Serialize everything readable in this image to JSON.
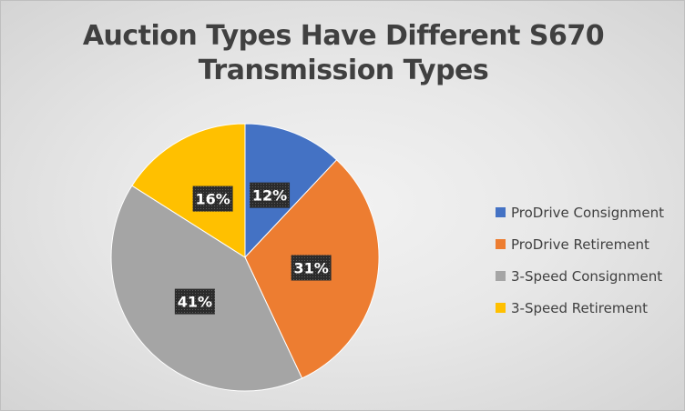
{
  "chart_data": {
    "type": "pie",
    "title_lines": [
      "Auction Types Have Different S670",
      "Transmission Types"
    ],
    "categories": [
      "ProDrive Consignment",
      "ProDrive Retirement",
      "3-Speed Consignment",
      "3-Speed Retirement"
    ],
    "values": [
      12,
      31,
      41,
      16
    ],
    "data_labels": [
      "12%",
      "31%",
      "41%",
      "16%"
    ],
    "colors": [
      "#4472c4",
      "#ed7d31",
      "#a5a5a5",
      "#ffc000"
    ],
    "legend_position": "right"
  }
}
